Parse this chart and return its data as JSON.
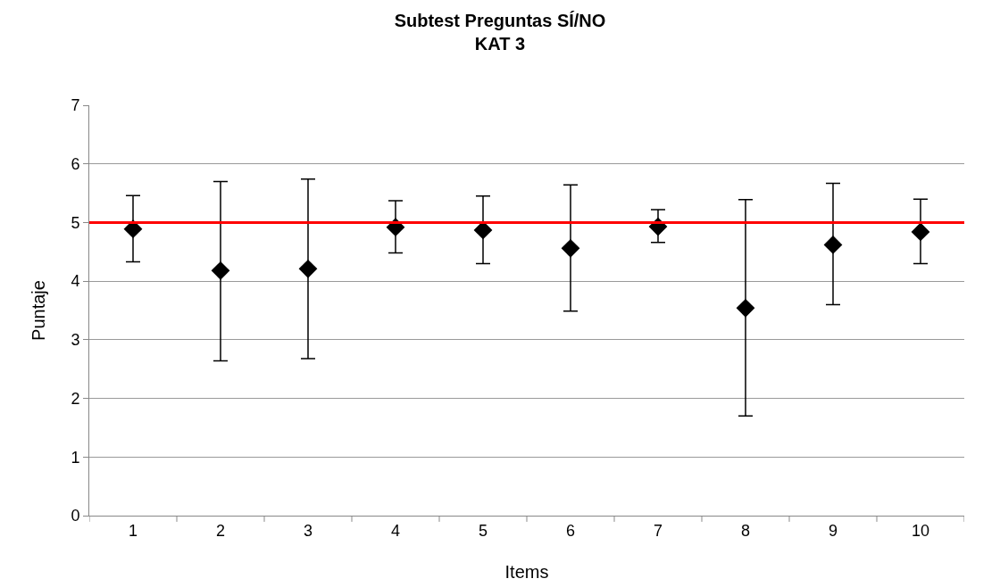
{
  "chart_data": {
    "type": "scatter",
    "title": "Subtest Preguntas SÍ/NO\nKAT 3",
    "xlabel": "Items",
    "ylabel": "Puntaje",
    "categories": [
      "1",
      "2",
      "3",
      "4",
      "5",
      "6",
      "7",
      "8",
      "9",
      "10"
    ],
    "values": [
      4.89,
      4.18,
      4.21,
      4.92,
      4.87,
      4.56,
      4.93,
      3.54,
      4.62,
      4.84
    ],
    "errors": [
      [
        4.33,
        5.46
      ],
      [
        2.64,
        5.7
      ],
      [
        2.68,
        5.74
      ],
      [
        4.48,
        5.37
      ],
      [
        4.3,
        5.45
      ],
      [
        3.49,
        5.64
      ],
      [
        4.66,
        5.22
      ],
      [
        1.7,
        5.39
      ],
      [
        3.6,
        5.67
      ],
      [
        4.3,
        5.4
      ]
    ],
    "color": "#000000",
    "marker": "diamond",
    "ref_lines": [
      {
        "axis": "y",
        "value": 5,
        "color": "#ff0000"
      }
    ],
    "ylim": [
      0,
      7
    ],
    "yticks": [
      0,
      1,
      2,
      3,
      4,
      5,
      6,
      7
    ],
    "grid": "y"
  }
}
